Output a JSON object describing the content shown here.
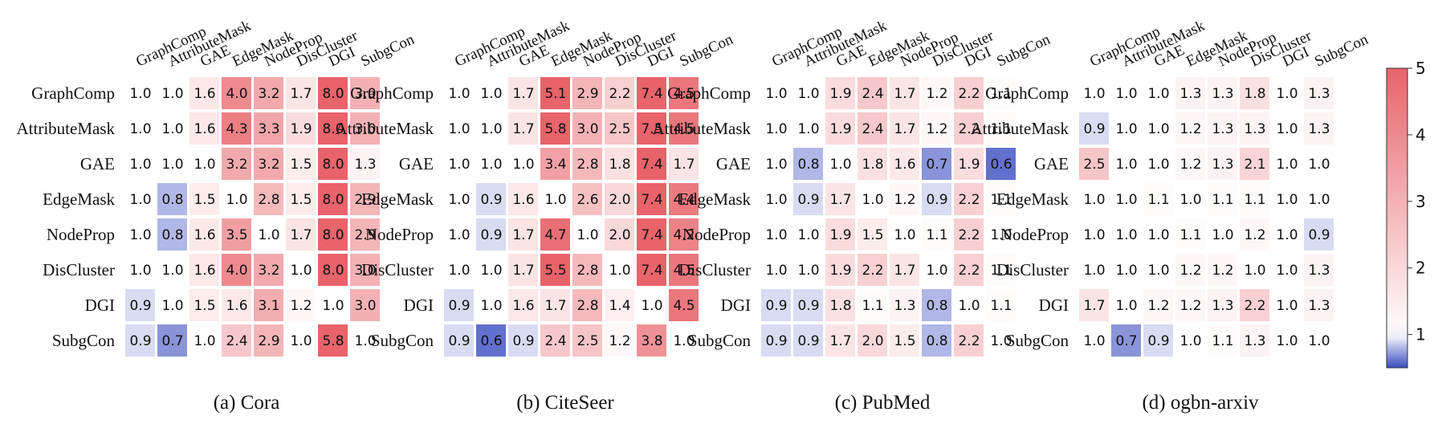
{
  "chart_data": [
    {
      "type": "heatmap",
      "caption": "(a) Cora",
      "rows": [
        "GraphComp",
        "AttributeMask",
        "GAE",
        "EdgeMask",
        "NodeProp",
        "DisCluster",
        "DGI",
        "SubgCon"
      ],
      "columns": [
        "GraphComp",
        "AttributeMask",
        "GAE",
        "EdgeMask",
        "NodeProp",
        "DisCluster",
        "DGI",
        "SubgCon"
      ],
      "values": [
        [
          "1.0",
          "1.0",
          "1.6",
          "4.0",
          "3.2",
          "1.7",
          "8.0",
          "3.0"
        ],
        [
          "1.0",
          "1.0",
          "1.6",
          "4.3",
          "3.3",
          "1.9",
          "8.0",
          "3.0"
        ],
        [
          "1.0",
          "1.0",
          "1.0",
          "3.2",
          "3.2",
          "1.5",
          "8.0",
          "1.3"
        ],
        [
          "1.0",
          "0.8",
          "1.5",
          "1.0",
          "2.8",
          "1.5",
          "8.0",
          "2.9"
        ],
        [
          "1.0",
          "0.8",
          "1.6",
          "3.5",
          "1.0",
          "1.7",
          "8.0",
          "2.9"
        ],
        [
          "1.0",
          "1.0",
          "1.6",
          "4.0",
          "3.2",
          "1.0",
          "8.0",
          "3.0"
        ],
        [
          "0.9",
          "1.0",
          "1.5",
          "1.6",
          "3.1",
          "1.2",
          "1.0",
          "3.0"
        ],
        [
          "0.9",
          "0.7",
          "1.0",
          "2.4",
          "2.9",
          "1.0",
          "5.8",
          "1.0"
        ]
      ]
    },
    {
      "type": "heatmap",
      "caption": "(b) CiteSeer",
      "rows": [
        "GraphComp",
        "AttributeMask",
        "GAE",
        "EdgeMask",
        "NodeProp",
        "DisCluster",
        "DGI",
        "SubgCon"
      ],
      "columns": [
        "GraphComp",
        "AttributeMask",
        "GAE",
        "EdgeMask",
        "NodeProp",
        "DisCluster",
        "DGI",
        "SubgCon"
      ],
      "values": [
        [
          "1.0",
          "1.0",
          "1.7",
          "5.1",
          "2.9",
          "2.2",
          "7.4",
          "4.5"
        ],
        [
          "1.0",
          "1.0",
          "1.7",
          "5.8",
          "3.0",
          "2.5",
          "7.5",
          "4.5"
        ],
        [
          "1.0",
          "1.0",
          "1.0",
          "3.4",
          "2.8",
          "1.8",
          "7.4",
          "1.7"
        ],
        [
          "1.0",
          "0.9",
          "1.6",
          "1.0",
          "2.6",
          "2.0",
          "7.4",
          "4.4"
        ],
        [
          "1.0",
          "0.9",
          "1.7",
          "4.7",
          "1.0",
          "2.0",
          "7.4",
          "4.2"
        ],
        [
          "1.0",
          "1.0",
          "1.7",
          "5.5",
          "2.8",
          "1.0",
          "7.4",
          "4.5"
        ],
        [
          "0.9",
          "1.0",
          "1.6",
          "1.7",
          "2.8",
          "1.4",
          "1.0",
          "4.5"
        ],
        [
          "0.9",
          "0.6",
          "0.9",
          "2.4",
          "2.5",
          "1.2",
          "3.8",
          "1.0"
        ]
      ]
    },
    {
      "type": "heatmap",
      "caption": "(c) PubMed",
      "rows": [
        "GraphComp",
        "AttributeMask",
        "GAE",
        "EdgeMask",
        "NodeProp",
        "DisCluster",
        "DGI",
        "SubgCon"
      ],
      "columns": [
        "GraphComp",
        "AttributeMask",
        "GAE",
        "EdgeMask",
        "NodeProp",
        "DisCluster",
        "DGI",
        "SubgCon"
      ],
      "values": [
        [
          "1.0",
          "1.0",
          "1.9",
          "2.4",
          "1.7",
          "1.2",
          "2.2",
          "1.1"
        ],
        [
          "1.0",
          "1.0",
          "1.9",
          "2.4",
          "1.7",
          "1.2",
          "2.2",
          "1.1"
        ],
        [
          "1.0",
          "0.8",
          "1.0",
          "1.8",
          "1.6",
          "0.7",
          "1.9",
          "0.6"
        ],
        [
          "1.0",
          "0.9",
          "1.7",
          "1.0",
          "1.2",
          "0.9",
          "2.2",
          "1.1"
        ],
        [
          "1.0",
          "1.0",
          "1.9",
          "1.5",
          "1.0",
          "1.1",
          "2.2",
          "1.0"
        ],
        [
          "1.0",
          "1.0",
          "1.9",
          "2.2",
          "1.7",
          "1.0",
          "2.2",
          "1.1"
        ],
        [
          "0.9",
          "0.9",
          "1.8",
          "1.1",
          "1.3",
          "0.8",
          "1.0",
          "1.1"
        ],
        [
          "0.9",
          "0.9",
          "1.7",
          "2.0",
          "1.5",
          "0.8",
          "2.2",
          "1.0"
        ]
      ]
    },
    {
      "type": "heatmap",
      "caption": "(d) ogbn-arxiv",
      "rows": [
        "GraphComp",
        "AttributeMask",
        "GAE",
        "EdgeMask",
        "NodeProp",
        "DisCluster",
        "DGI",
        "SubgCon"
      ],
      "columns": [
        "GraphComp",
        "AttributeMask",
        "GAE",
        "EdgeMask",
        "NodeProp",
        "DisCluster",
        "DGI",
        "SubgCon"
      ],
      "values": [
        [
          "1.0",
          "1.0",
          "1.0",
          "1.3",
          "1.3",
          "1.8",
          "1.0",
          "1.3"
        ],
        [
          "0.9",
          "1.0",
          "1.0",
          "1.2",
          "1.3",
          "1.3",
          "1.0",
          "1.3"
        ],
        [
          "2.5",
          "1.0",
          "1.0",
          "1.2",
          "1.3",
          "2.1",
          "1.0",
          "1.0"
        ],
        [
          "1.0",
          "1.0",
          "1.1",
          "1.0",
          "1.1",
          "1.1",
          "1.0",
          "1.0"
        ],
        [
          "1.0",
          "1.0",
          "1.0",
          "1.1",
          "1.0",
          "1.2",
          "1.0",
          "0.9"
        ],
        [
          "1.0",
          "1.0",
          "1.0",
          "1.2",
          "1.2",
          "1.0",
          "1.0",
          "1.3"
        ],
        [
          "1.7",
          "1.0",
          "1.2",
          "1.2",
          "1.3",
          "2.2",
          "1.0",
          "1.3"
        ],
        [
          "1.0",
          "0.7",
          "0.9",
          "1.0",
          "1.1",
          "1.3",
          "1.0",
          "1.0"
        ]
      ]
    }
  ],
  "colorbar": {
    "range": [
      0.5,
      5
    ],
    "ticks": [
      "1",
      "2",
      "3",
      "4",
      "5"
    ],
    "colors": {
      "low": "#3b4cc0",
      "mid": "#ffffff",
      "high": "#e8636a"
    }
  }
}
